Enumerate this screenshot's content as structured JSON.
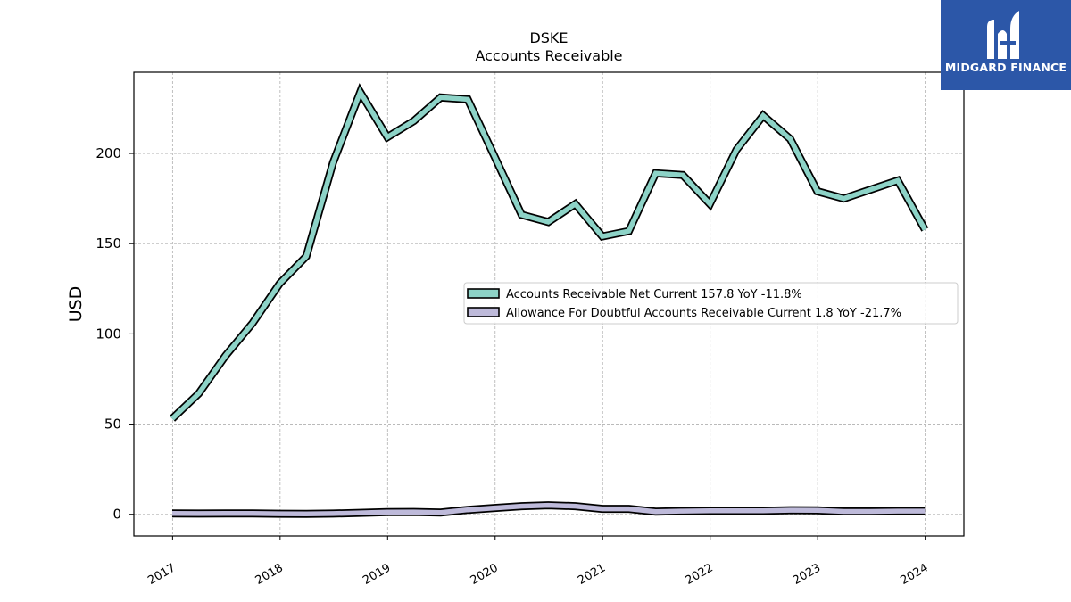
{
  "brand": {
    "name": "MIDGARD FINANCE",
    "logo_icon": "midgard-m-logo-icon",
    "background_color": "#2c57a8"
  },
  "chart_data": {
    "type": "line",
    "title": "DSKE",
    "subtitle": "Accounts Receivable",
    "ylabel": "USD",
    "xlabel": "",
    "ylim": [
      -12,
      245
    ],
    "xlim": [
      2016.64,
      2024.36
    ],
    "yticks": [
      0,
      50,
      100,
      150,
      200
    ],
    "xticks": [
      "2017",
      "2018",
      "2019",
      "2020",
      "2021",
      "2022",
      "2023",
      "2024"
    ],
    "grid": true,
    "legend_position": "center-right",
    "series": [
      {
        "name": "Accounts Receivable Net Current  157.8 YoY -11.8%",
        "color": "#8dd3c7",
        "x": [
          "2016-12-31",
          "2017-03-31",
          "2017-06-30",
          "2017-09-30",
          "2017-12-31",
          "2018-03-31",
          "2018-06-30",
          "2018-09-30",
          "2018-12-31",
          "2019-03-31",
          "2019-06-30",
          "2019-09-30",
          "2019-12-31",
          "2020-03-31",
          "2020-06-30",
          "2020-09-30",
          "2020-12-31",
          "2021-03-31",
          "2021-06-30",
          "2021-09-30",
          "2021-12-31",
          "2022-03-31",
          "2022-06-30",
          "2022-09-30",
          "2022-12-31",
          "2023-03-31",
          "2023-06-30",
          "2023-09-30",
          "2023-12-31"
        ],
        "values": [
          53,
          67,
          88,
          106,
          128,
          143,
          195,
          234,
          209,
          218,
          231,
          230,
          198,
          166,
          162,
          172,
          154,
          157,
          189,
          188,
          172,
          202,
          221,
          208,
          179,
          175,
          180,
          185,
          157.8
        ]
      },
      {
        "name": "Allowance For Doubtful Accounts Receivable Current  1.8 YoY -21.7%",
        "color": "#bebada",
        "x": [
          "2016-12-31",
          "2017-03-31",
          "2017-06-30",
          "2017-09-30",
          "2017-12-31",
          "2018-03-31",
          "2018-06-30",
          "2018-09-30",
          "2018-12-31",
          "2019-03-31",
          "2019-06-30",
          "2019-09-30",
          "2019-12-31",
          "2020-03-31",
          "2020-06-30",
          "2020-09-30",
          "2020-12-31",
          "2021-03-31",
          "2021-06-30",
          "2021-09-30",
          "2021-12-31",
          "2022-03-31",
          "2022-06-30",
          "2022-09-30",
          "2022-12-31",
          "2023-03-31",
          "2023-06-30",
          "2023-09-30",
          "2023-12-31"
        ],
        "values": [
          0.5,
          0.4,
          0.5,
          0.5,
          0.3,
          0.2,
          0.4,
          0.8,
          1.2,
          1.3,
          1.0,
          2.5,
          3.5,
          4.5,
          5.0,
          4.5,
          3.0,
          3.0,
          1.5,
          1.8,
          2.0,
          2.0,
          2.0,
          2.3,
          2.2,
          1.6,
          1.6,
          1.8,
          1.8
        ]
      }
    ]
  }
}
